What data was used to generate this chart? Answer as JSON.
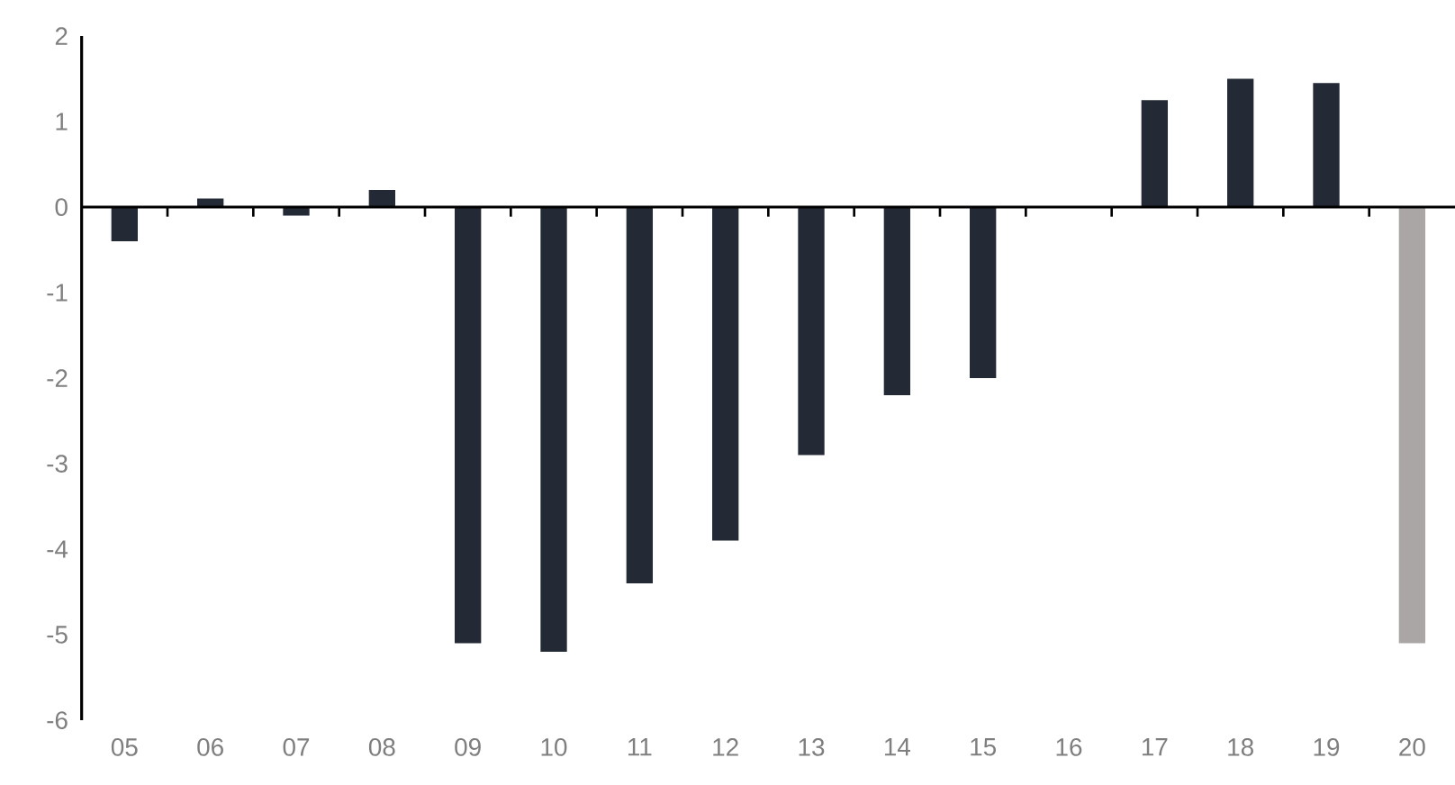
{
  "chart_data": {
    "type": "bar",
    "categories": [
      "05",
      "06",
      "07",
      "08",
      "09",
      "10",
      "11",
      "12",
      "13",
      "14",
      "15",
      "16",
      "17",
      "18",
      "19",
      "20"
    ],
    "values": [
      -0.4,
      0.1,
      -0.1,
      0.2,
      -5.1,
      -5.2,
      -4.4,
      -3.9,
      -2.9,
      -2.2,
      -2.0,
      0,
      1.25,
      1.5,
      1.45,
      -5.1
    ],
    "colors": [
      "#232a35",
      "#232a35",
      "#232a35",
      "#232a35",
      "#232a35",
      "#232a35",
      "#232a35",
      "#232a35",
      "#232a35",
      "#232a35",
      "#232a35",
      "#232a35",
      "#232a35",
      "#232a35",
      "#232a35",
      "#aaa6a6"
    ],
    "ylim": [
      -6,
      2
    ],
    "yticks": [
      -6,
      -5,
      -4,
      -3,
      -2,
      -1,
      0,
      1,
      2
    ]
  }
}
